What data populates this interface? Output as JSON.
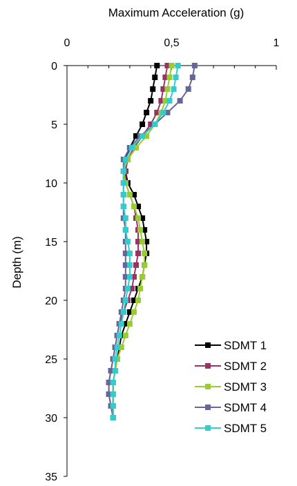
{
  "chart_data": {
    "type": "line",
    "xlabel": "Maximum Acceleration (g)",
    "ylabel": "Depth (m)",
    "xlim": [
      0,
      1
    ],
    "ylim": [
      0,
      35
    ],
    "y_inverted": true,
    "x_axis_position": "top",
    "x_ticks": [
      "0",
      "0,5",
      "1"
    ],
    "y_ticks": [
      "0",
      "5",
      "10",
      "15",
      "20",
      "25",
      "30",
      "35"
    ],
    "grid": false,
    "legend_position": "bottom-right",
    "series": [
      {
        "name": "SDMT 1",
        "color": "#000000",
        "points": [
          [
            0.43,
            0
          ],
          [
            0.42,
            1
          ],
          [
            0.41,
            2
          ],
          [
            0.4,
            3
          ],
          [
            0.38,
            4
          ],
          [
            0.36,
            5
          ],
          [
            0.33,
            6
          ],
          [
            0.3,
            7
          ],
          [
            0.28,
            8
          ],
          [
            0.28,
            9
          ],
          [
            0.29,
            10
          ],
          [
            0.32,
            11
          ],
          [
            0.34,
            12
          ],
          [
            0.36,
            13
          ],
          [
            0.37,
            14
          ],
          [
            0.38,
            15
          ],
          [
            0.38,
            16
          ],
          [
            0.37,
            17
          ],
          [
            0.36,
            18
          ],
          [
            0.34,
            19
          ],
          [
            0.32,
            20
          ],
          [
            0.3,
            21
          ],
          [
            0.28,
            22
          ],
          [
            0.26,
            23
          ],
          [
            0.25,
            24
          ],
          [
            0.24,
            25
          ],
          [
            0.23,
            26
          ],
          [
            0.22,
            27
          ],
          [
            0.22,
            28
          ],
          [
            0.22,
            29
          ],
          [
            0.22,
            30
          ]
        ]
      },
      {
        "name": "SDMT 2",
        "color": "#993366",
        "points": [
          [
            0.48,
            0
          ],
          [
            0.47,
            1
          ],
          [
            0.46,
            2
          ],
          [
            0.45,
            3
          ],
          [
            0.43,
            4
          ],
          [
            0.4,
            5
          ],
          [
            0.36,
            6
          ],
          [
            0.32,
            7
          ],
          [
            0.29,
            8
          ],
          [
            0.28,
            9
          ],
          [
            0.28,
            10
          ],
          [
            0.3,
            11
          ],
          [
            0.32,
            12
          ],
          [
            0.33,
            13
          ],
          [
            0.34,
            14
          ],
          [
            0.34,
            15
          ],
          [
            0.34,
            16
          ],
          [
            0.33,
            17
          ],
          [
            0.32,
            18
          ],
          [
            0.31,
            19
          ],
          [
            0.29,
            20
          ],
          [
            0.27,
            21
          ],
          [
            0.25,
            22
          ],
          [
            0.24,
            23
          ],
          [
            0.23,
            24
          ],
          [
            0.22,
            25
          ],
          [
            0.21,
            26
          ],
          [
            0.2,
            27
          ],
          [
            0.2,
            28
          ],
          [
            0.21,
            29
          ],
          [
            0.22,
            30
          ]
        ]
      },
      {
        "name": "SDMT 3",
        "color": "#99CC33",
        "points": [
          [
            0.5,
            0
          ],
          [
            0.49,
            1
          ],
          [
            0.48,
            2
          ],
          [
            0.47,
            3
          ],
          [
            0.45,
            4
          ],
          [
            0.42,
            5
          ],
          [
            0.38,
            6
          ],
          [
            0.33,
            7
          ],
          [
            0.29,
            8
          ],
          [
            0.27,
            9
          ],
          [
            0.28,
            10
          ],
          [
            0.3,
            11
          ],
          [
            0.32,
            12
          ],
          [
            0.34,
            13
          ],
          [
            0.35,
            14
          ],
          [
            0.36,
            15
          ],
          [
            0.37,
            16
          ],
          [
            0.37,
            17
          ],
          [
            0.36,
            18
          ],
          [
            0.35,
            19
          ],
          [
            0.34,
            20
          ],
          [
            0.32,
            21
          ],
          [
            0.3,
            22
          ],
          [
            0.28,
            23
          ],
          [
            0.26,
            24
          ],
          [
            0.24,
            25
          ],
          [
            0.23,
            26
          ],
          [
            0.22,
            27
          ],
          [
            0.22,
            28
          ],
          [
            0.22,
            29
          ],
          [
            0.22,
            30
          ]
        ]
      },
      {
        "name": "SDMT 4",
        "color": "#666699",
        "points": [
          [
            0.61,
            0
          ],
          [
            0.6,
            1
          ],
          [
            0.58,
            2
          ],
          [
            0.54,
            3
          ],
          [
            0.48,
            4
          ],
          [
            0.42,
            5
          ],
          [
            0.35,
            6
          ],
          [
            0.3,
            7
          ],
          [
            0.27,
            8
          ],
          [
            0.27,
            9
          ],
          [
            0.27,
            10
          ],
          [
            0.27,
            11
          ],
          [
            0.27,
            12
          ],
          [
            0.27,
            13
          ],
          [
            0.28,
            14
          ],
          [
            0.28,
            15
          ],
          [
            0.28,
            16
          ],
          [
            0.28,
            17
          ],
          [
            0.28,
            18
          ],
          [
            0.28,
            19
          ],
          [
            0.27,
            20
          ],
          [
            0.26,
            21
          ],
          [
            0.25,
            22
          ],
          [
            0.24,
            23
          ],
          [
            0.23,
            24
          ],
          [
            0.22,
            25
          ],
          [
            0.21,
            26
          ],
          [
            0.2,
            27
          ],
          [
            0.2,
            28
          ],
          [
            0.21,
            29
          ],
          [
            0.22,
            30
          ]
        ]
      },
      {
        "name": "SDMT 5",
        "color": "#33CCCC",
        "points": [
          [
            0.53,
            0
          ],
          [
            0.52,
            1
          ],
          [
            0.51,
            2
          ],
          [
            0.49,
            3
          ],
          [
            0.46,
            4
          ],
          [
            0.42,
            5
          ],
          [
            0.36,
            6
          ],
          [
            0.31,
            7
          ],
          [
            0.28,
            8
          ],
          [
            0.27,
            9
          ],
          [
            0.27,
            10
          ],
          [
            0.27,
            11
          ],
          [
            0.27,
            12
          ],
          [
            0.28,
            13
          ],
          [
            0.28,
            14
          ],
          [
            0.29,
            15
          ],
          [
            0.3,
            16
          ],
          [
            0.3,
            17
          ],
          [
            0.3,
            18
          ],
          [
            0.29,
            19
          ],
          [
            0.28,
            20
          ],
          [
            0.27,
            21
          ],
          [
            0.26,
            22
          ],
          [
            0.25,
            23
          ],
          [
            0.24,
            24
          ],
          [
            0.23,
            25
          ],
          [
            0.23,
            26
          ],
          [
            0.22,
            27
          ],
          [
            0.22,
            28
          ],
          [
            0.22,
            29
          ],
          [
            0.22,
            30
          ]
        ]
      }
    ]
  }
}
